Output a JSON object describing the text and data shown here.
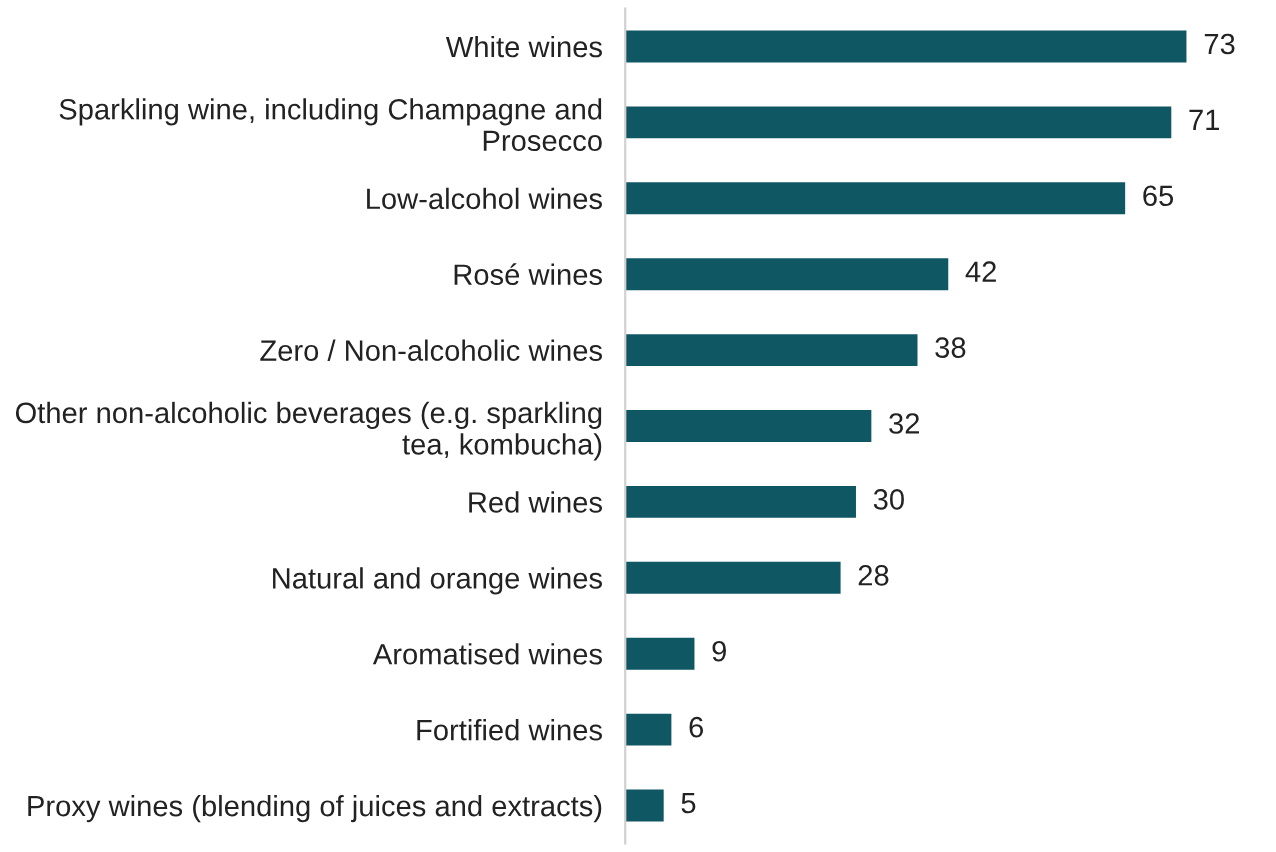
{
  "chart_data": {
    "type": "bar",
    "orientation": "horizontal",
    "categories": [
      "White wines",
      "Sparkling wine, including Champagne and\nProsecco",
      "Low-alcohol wines",
      "Rosé wines",
      "Zero / Non-alcoholic wines",
      "Other non-alcoholic beverages (e.g. sparkling\ntea, kombucha)",
      "Red wines",
      "Natural and orange wines",
      "Aromatised wines",
      "Fortified wines",
      "Proxy wines (blending of juices and extracts)"
    ],
    "values": [
      73,
      71,
      65,
      42,
      38,
      32,
      30,
      28,
      9,
      6,
      5
    ],
    "color": "#0e5763",
    "data_labels": true
  }
}
